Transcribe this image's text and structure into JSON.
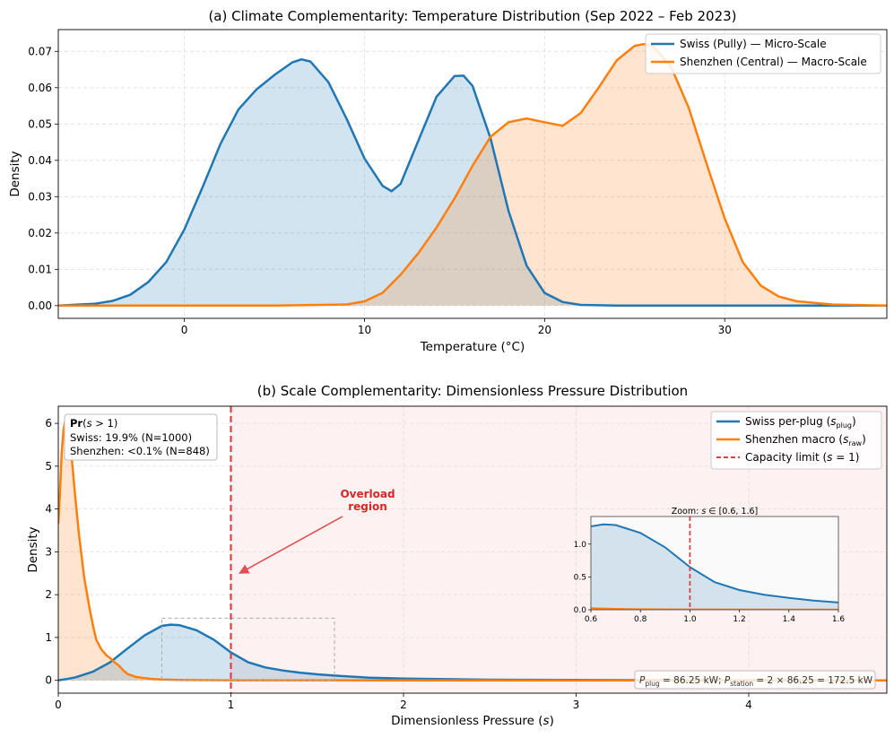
{
  "colors": {
    "swiss": "#1f77b4",
    "shenzhen": "#ff7f0e",
    "limit": "#d62728",
    "overload_fill": "#fdf1f1"
  },
  "chart_data": [
    {
      "type": "line",
      "title": "(a) Climate Complementarity: Temperature Distribution (Sep 2022 – Feb 2023)",
      "xlabel": "Temperature (°C)",
      "ylabel": "Density",
      "xlim": [
        -7,
        39
      ],
      "ylim": [
        -0.0035,
        0.076
      ],
      "xticks": [
        0,
        10,
        20,
        30
      ],
      "yticks": [
        0.0,
        0.01,
        0.02,
        0.03,
        0.04,
        0.05,
        0.06,
        0.07
      ],
      "ytick_labels": [
        "0.00",
        "0.01",
        "0.02",
        "0.03",
        "0.04",
        "0.05",
        "0.06",
        "0.07"
      ],
      "grid": true,
      "legend_position": "top-right",
      "series": [
        {
          "name": "Swiss (Pully) — Micro-Scale",
          "x": [
            -7,
            -5,
            -4,
            -3,
            -2,
            -1,
            0,
            1,
            2,
            3,
            4,
            5,
            6,
            6.5,
            7,
            8,
            9,
            10,
            11,
            11.5,
            12,
            13,
            14,
            15,
            15.5,
            16,
            17,
            18,
            19,
            20,
            21,
            22,
            24,
            27,
            30,
            35,
            39
          ],
          "y": [
            0.0,
            0.0005,
            0.0013,
            0.003,
            0.0065,
            0.012,
            0.021,
            0.0325,
            0.0445,
            0.054,
            0.0595,
            0.0635,
            0.067,
            0.0678,
            0.0672,
            0.0615,
            0.0515,
            0.0405,
            0.033,
            0.0315,
            0.0335,
            0.0455,
            0.0575,
            0.0632,
            0.0633,
            0.0605,
            0.046,
            0.026,
            0.011,
            0.0035,
            0.001,
            0.0002,
            0.0,
            0.0,
            0.0,
            0.0,
            0.0
          ]
        },
        {
          "name": "Shenzhen (Central) — Macro-Scale",
          "x": [
            -7,
            0,
            5,
            9,
            10,
            11,
            12,
            13,
            14,
            15,
            16,
            17,
            18,
            19,
            20,
            21,
            22,
            23,
            24,
            25,
            25.5,
            26,
            27,
            28,
            29,
            30,
            31,
            32,
            33,
            34,
            36,
            39
          ],
          "y": [
            0.0,
            0.0,
            0.0,
            0.0003,
            0.0012,
            0.0035,
            0.0085,
            0.0145,
            0.0215,
            0.0295,
            0.0385,
            0.0465,
            0.0505,
            0.0515,
            0.0505,
            0.0495,
            0.053,
            0.06,
            0.0675,
            0.0715,
            0.072,
            0.0715,
            0.066,
            0.0545,
            0.039,
            0.024,
            0.012,
            0.0055,
            0.0025,
            0.0012,
            0.0003,
            0.0
          ]
        }
      ]
    },
    {
      "type": "line",
      "title": "(b) Scale Complementarity: Dimensionless Pressure Distribution",
      "xlabel": "Dimensionless Pressure (s)",
      "ylabel": "Density",
      "xlim": [
        0,
        4.8
      ],
      "ylim": [
        -0.3,
        6.4
      ],
      "xticks": [
        0,
        1,
        2,
        3,
        4
      ],
      "yticks": [
        0,
        1,
        2,
        3,
        4,
        5,
        6
      ],
      "grid": true,
      "legend_position": "top-right",
      "series": [
        {
          "name": "Swiss per-plug (s_plug)",
          "x": [
            0,
            0.05,
            0.1,
            0.2,
            0.3,
            0.4,
            0.5,
            0.6,
            0.65,
            0.7,
            0.8,
            0.9,
            1.0,
            1.1,
            1.2,
            1.3,
            1.4,
            1.5,
            1.6,
            1.8,
            2.0,
            2.5,
            3.0,
            3.5,
            4.0,
            4.8
          ],
          "y": [
            0.0,
            0.03,
            0.07,
            0.2,
            0.42,
            0.74,
            1.05,
            1.27,
            1.3,
            1.29,
            1.17,
            0.95,
            0.65,
            0.42,
            0.3,
            0.23,
            0.18,
            0.14,
            0.11,
            0.06,
            0.04,
            0.015,
            0.008,
            0.004,
            0.002,
            0.0
          ]
        },
        {
          "name": "Shenzhen macro (s_raw)",
          "x": [
            0,
            0.01,
            0.02,
            0.03,
            0.04,
            0.05,
            0.06,
            0.08,
            0.1,
            0.12,
            0.15,
            0.18,
            0.2,
            0.22,
            0.25,
            0.28,
            0.3,
            0.32,
            0.35,
            0.38,
            0.4,
            0.45,
            0.5,
            0.55,
            0.6,
            0.7,
            0.8,
            1.0,
            2.0,
            3.0,
            4.8
          ],
          "y": [
            3.65,
            4.4,
            5.3,
            5.85,
            6.05,
            6.1,
            5.9,
            5.1,
            4.2,
            3.4,
            2.4,
            1.7,
            1.3,
            0.95,
            0.72,
            0.58,
            0.52,
            0.44,
            0.35,
            0.22,
            0.15,
            0.08,
            0.05,
            0.03,
            0.02,
            0.01,
            0.005,
            0.002,
            0.0,
            0.0,
            0.0
          ]
        }
      ],
      "capacity_limit": {
        "name": "Capacity limit (s = 1)",
        "x": 1
      },
      "overload_region": {
        "x_start": 1,
        "x_end": 4.8
      },
      "zoom_box": {
        "x": [
          0.6,
          1.6
        ],
        "y": [
          0.0,
          1.45
        ]
      },
      "probability_box": {
        "title": "Pr(s > 1)",
        "lines": [
          "Swiss: 19.9% (N=1000)",
          "Shenzhen: <0.1% (N=848)"
        ]
      },
      "overload_annotation": {
        "text": [
          "Overload",
          "region"
        ],
        "arrow_to": [
          1.05,
          2.5
        ]
      },
      "power_note": "P_plug = 86.25 kW; P_station = 2 × 86.25 = 172.5 kW",
      "inset": {
        "title": "Zoom: s ∈ [0.6, 1.6]",
        "xlim": [
          0.6,
          1.6
        ],
        "ylim": [
          0,
          1.42
        ],
        "xticks": [
          0.6,
          0.8,
          1.0,
          1.2,
          1.4,
          1.6
        ],
        "xtick_labels": [
          "0.6",
          "0.8",
          "1.0",
          "1.2",
          "1.4",
          "1.6"
        ],
        "yticks": [
          0.0,
          0.5,
          1.0
        ],
        "ytick_labels": [
          "0.0",
          "0.5",
          "1.0"
        ]
      }
    }
  ]
}
